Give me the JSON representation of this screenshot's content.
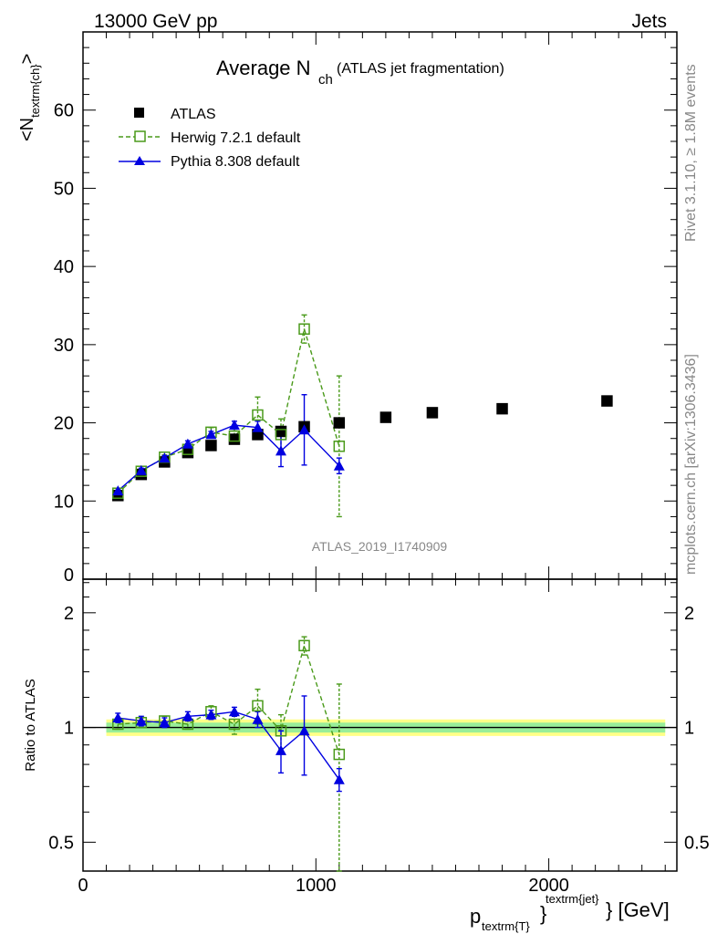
{
  "header": {
    "left": "13000 GeV pp",
    "right": "Jets",
    "title_main": "Average N",
    "title_sub": "ch",
    "title_extra": "(ATLAS jet fragmentation)"
  },
  "side": {
    "rivet": "Rivet 3.1.10, ≥ 1.8M events",
    "mcplots": "mcplots.cern.ch [arXiv:1306.3436]"
  },
  "analysis_id": "ATLAS_2019_I1740909",
  "axes": {
    "ylabel_main": "<N",
    "ylabel_main_sub": "textrm{ch}",
    "ylabel_main_end": ">",
    "ylabel_ratio": "Ratio to ATLAS",
    "xlabel_p": "p",
    "xlabel_sub": "textrm{T}",
    "xlabel_sup": "textrm{jet}",
    "xlabel_unit": "} [GeV]",
    "x_ticks": [
      "0",
      "1000",
      "2000"
    ],
    "y_ticks_main": [
      "10",
      "20",
      "30",
      "40",
      "50",
      "60",
      "0"
    ],
    "y_ticks_ratio": [
      "0.5",
      "1",
      "2"
    ]
  },
  "legend": {
    "atlas": "ATLAS",
    "herwig": "Herwig 7.2.1 default",
    "pythia": "Pythia 8.308 default"
  },
  "colors": {
    "atlas": "#000000",
    "herwig": "#4a9a1a",
    "pythia": "#0000e0",
    "band_inner": "#99ee99",
    "band_outer": "#ffff88"
  },
  "chart_data": {
    "type": "scatter",
    "xlim": [
      0,
      2550
    ],
    "ylim_main": [
      0,
      70
    ],
    "ylim_ratio": [
      0.42,
      2.45
    ],
    "ratio_log_scale": true,
    "series": [
      {
        "name": "ATLAS",
        "x": [
          150,
          250,
          350,
          450,
          550,
          650,
          750,
          850,
          950,
          1100,
          1300,
          1500,
          1800,
          2250
        ],
        "values": [
          10.7,
          13.4,
          15.0,
          16.2,
          17.1,
          17.9,
          18.5,
          18.9,
          19.5,
          20.0,
          20.7,
          21.3,
          21.8,
          22.8
        ]
      },
      {
        "name": "Herwig 7.2.1 default",
        "x": [
          150,
          250,
          350,
          450,
          550,
          650,
          750,
          850,
          950,
          1100
        ],
        "values": [
          11.0,
          13.8,
          15.6,
          16.6,
          18.8,
          18.3,
          21.0,
          18.5,
          32.0,
          17.0
        ],
        "errors": [
          0.3,
          0.3,
          0.3,
          0.5,
          0.6,
          1.0,
          2.3,
          2.0,
          1.8,
          9.0
        ]
      },
      {
        "name": "Pythia 8.308 default",
        "x": [
          150,
          250,
          350,
          450,
          550,
          650,
          750,
          850,
          950,
          1100
        ],
        "values": [
          11.3,
          13.9,
          15.5,
          17.3,
          18.5,
          19.7,
          19.4,
          16.4,
          19.1,
          14.5
        ],
        "errors": [
          0.3,
          0.3,
          0.3,
          0.4,
          0.4,
          0.5,
          0.8,
          2.0,
          4.5,
          1.0
        ]
      }
    ],
    "ratio": {
      "herwig": [
        1.02,
        1.03,
        1.04,
        1.02,
        1.1,
        1.02,
        1.14,
        0.98,
        1.64,
        0.85
      ],
      "herwig_err": [
        0.03,
        0.03,
        0.03,
        0.03,
        0.04,
        0.06,
        0.12,
        0.1,
        0.09,
        0.45
      ],
      "pythia": [
        1.06,
        1.04,
        1.03,
        1.07,
        1.08,
        1.1,
        1.05,
        0.87,
        0.98,
        0.73
      ],
      "pythia_err": [
        0.03,
        0.03,
        0.03,
        0.03,
        0.03,
        0.03,
        0.05,
        0.11,
        0.23,
        0.05
      ]
    }
  }
}
